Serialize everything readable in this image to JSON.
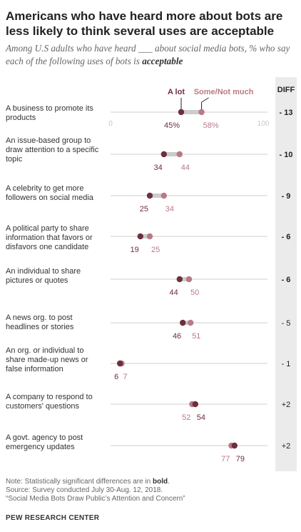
{
  "title": "Americans who have heard more about bots are less likely to think several uses are acceptable",
  "subtitle_pre": "Among U.S adults who have heard ___ about social media bots, % who say each of the following uses of bots is ",
  "subtitle_emph": "acceptable",
  "diff_header": "DIFF",
  "note_pre": "Note: Statistically significant differences are in ",
  "note_bold": "bold",
  "note_post": ".",
  "source": "Source: Survey conducted July 30-Aug. 12, 2018.",
  "report": "“Social Media Bots Draw Public’s Attention and Concern”",
  "org": "PEW RESEARCH CENTER",
  "colors": {
    "a_lot": "#6e2f3d",
    "some": "#b97a86",
    "connector": "#cccccc",
    "axis": "#cfcfcf"
  },
  "chart_data": {
    "type": "dot",
    "xlim": [
      0,
      100
    ],
    "axis_ticks": [
      "0",
      "100"
    ],
    "legend": [
      "A lot",
      "Some/Not much"
    ],
    "legend_placement": "top",
    "series": [
      {
        "name": "A lot",
        "values": [
          45,
          34,
          25,
          19,
          44,
          46,
          6,
          54,
          79
        ]
      },
      {
        "name": "Some/Not much",
        "values": [
          58,
          44,
          34,
          25,
          50,
          51,
          7,
          52,
          77
        ]
      }
    ],
    "rows": [
      {
        "label": [
          "A business to promote its",
          "products"
        ],
        "a_lot": 45,
        "some": 58,
        "a_lot_label": "45%",
        "some_label": "58%",
        "diff": "- 13",
        "significant": true
      },
      {
        "label": [
          "An issue-based group to",
          "draw attention to a specific",
          "topic"
        ],
        "a_lot": 34,
        "some": 44,
        "a_lot_label": "34",
        "some_label": "44",
        "diff": "- 10",
        "significant": true
      },
      {
        "label": [
          "A celebrity to get more",
          "followers on social media"
        ],
        "a_lot": 25,
        "some": 34,
        "a_lot_label": "25",
        "some_label": "34",
        "diff": "- 9",
        "significant": true
      },
      {
        "label": [
          "A political party to share",
          "information that favors or",
          "disfavors one candidate"
        ],
        "a_lot": 19,
        "some": 25,
        "a_lot_label": "19",
        "some_label": "25",
        "diff": "- 6",
        "significant": true
      },
      {
        "label": [
          "An individual to share",
          "pictures or quotes"
        ],
        "a_lot": 44,
        "some": 50,
        "a_lot_label": "44",
        "some_label": "50",
        "diff": "- 6",
        "significant": true
      },
      {
        "label": [
          "A news org. to post",
          "headlines or stories"
        ],
        "a_lot": 46,
        "some": 51,
        "a_lot_label": "46",
        "some_label": "51",
        "diff": "- 5",
        "significant": false
      },
      {
        "label": [
          "An org. or individual to",
          "share made-up news or",
          "false information"
        ],
        "a_lot": 6,
        "some": 7,
        "a_lot_label": "6",
        "some_label": "7",
        "diff": "- 1",
        "significant": false
      },
      {
        "label": [
          "A company to respond to",
          "customers' questions"
        ],
        "a_lot": 54,
        "some": 52,
        "a_lot_label": "54",
        "some_label": "52",
        "diff": "+2",
        "significant": false
      },
      {
        "label": [
          "A govt. agency to post",
          "emergency updates"
        ],
        "a_lot": 79,
        "some": 77,
        "a_lot_label": "79",
        "some_label": "77",
        "diff": "+2",
        "significant": false
      }
    ]
  }
}
